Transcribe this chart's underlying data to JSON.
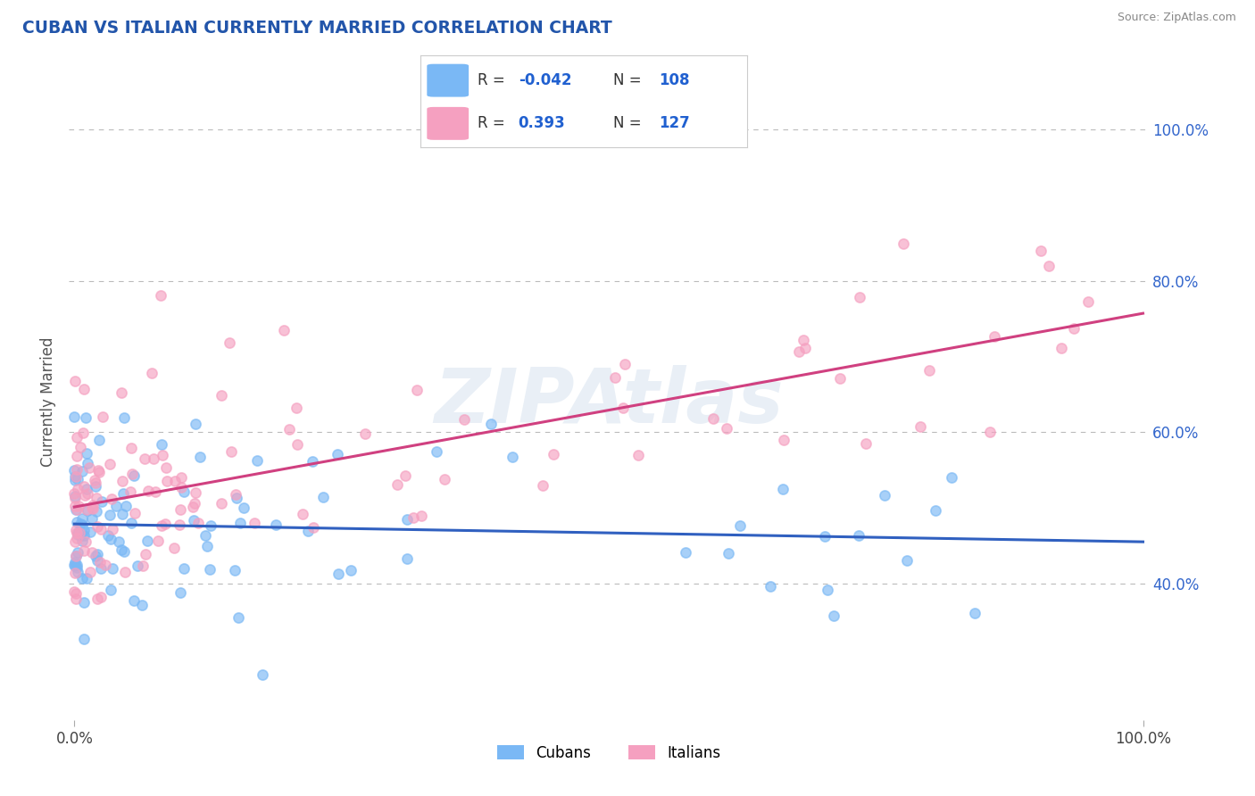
{
  "title": "CUBAN VS ITALIAN CURRENTLY MARRIED CORRELATION CHART",
  "source_text": "Source: ZipAtlas.com",
  "ylabel": "Currently Married",
  "cuban_color": "#7ab8f5",
  "italian_color": "#f5a0c0",
  "cuban_line_color": "#3060c0",
  "italian_line_color": "#d04080",
  "watermark": "ZIPAtlas",
  "background_color": "#ffffff",
  "grid_color": "#bbbbbb",
  "title_color": "#2255aa",
  "legend_r_color": "#e0204a",
  "legend_n_color": "#2060d0",
  "legend_text_color": "#333333"
}
